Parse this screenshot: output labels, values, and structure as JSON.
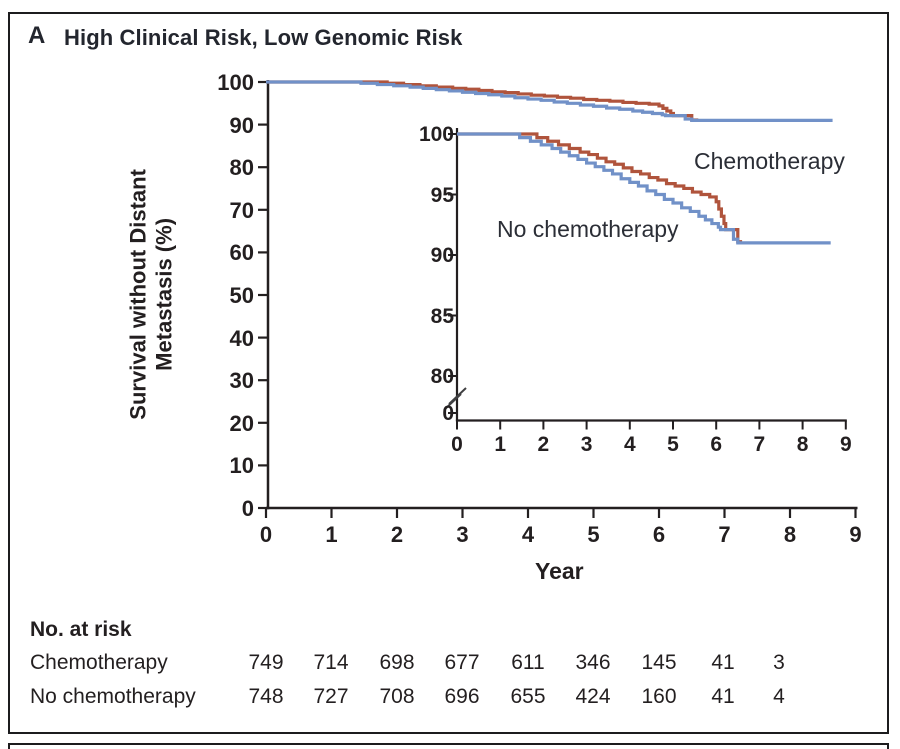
{
  "panel": {
    "label": "A",
    "title": "High Clinical Risk, Low Genomic Risk"
  },
  "colors": {
    "chemotherapy_line": "#b0543c",
    "no_chemotherapy_line": "#7191c8",
    "axis": "#231f20",
    "text": "#24262e"
  },
  "axis": {
    "ylabel_line1": "Survival without Distant",
    "ylabel_line2": "Metastasis (%)",
    "xlabel": "Year"
  },
  "legend": {
    "chemotherapy": "Chemotherapy",
    "no_chemotherapy": "No chemotherapy"
  },
  "chart_data": {
    "type": "line",
    "subtype": "kaplan-meier-step",
    "title": "High Clinical Risk, Low Genomic Risk",
    "xlabel": "Year",
    "ylabel": "Survival without Distant Metastasis (%)",
    "main_axis": {
      "xlim": [
        0,
        9
      ],
      "ylim": [
        0,
        100
      ],
      "x_ticks": [
        0,
        1,
        2,
        3,
        4,
        5,
        6,
        7,
        8,
        9
      ],
      "y_ticks": [
        100,
        90,
        80,
        70,
        60,
        50,
        40,
        30,
        20,
        10,
        0
      ],
      "grid": false
    },
    "inset_axis": {
      "xlim": [
        0,
        9
      ],
      "ylim_shown": [
        80,
        100
      ],
      "x_ticks": [
        0,
        1,
        2,
        3,
        4,
        5,
        6,
        7,
        8,
        9
      ],
      "y_ticks": [
        100,
        95,
        90,
        85,
        80,
        0
      ],
      "axis_break": true
    },
    "legend_position": "inset-annotations",
    "series": [
      {
        "name": "Chemotherapy",
        "color": "#b0543c",
        "points": [
          [
            0,
            100
          ],
          [
            1.6,
            100
          ],
          [
            1.85,
            99.7
          ],
          [
            2.1,
            99.4
          ],
          [
            2.35,
            99.1
          ],
          [
            2.6,
            98.8
          ],
          [
            2.85,
            98.5
          ],
          [
            3.05,
            98.3
          ],
          [
            3.25,
            98.0
          ],
          [
            3.45,
            97.7
          ],
          [
            3.65,
            97.5
          ],
          [
            3.85,
            97.2
          ],
          [
            4.05,
            96.9
          ],
          [
            4.25,
            96.7
          ],
          [
            4.45,
            96.4
          ],
          [
            4.65,
            96.2
          ],
          [
            4.85,
            95.9
          ],
          [
            5.05,
            95.7
          ],
          [
            5.25,
            95.5
          ],
          [
            5.45,
            95.2
          ],
          [
            5.65,
            95.0
          ],
          [
            5.85,
            94.8
          ],
          [
            6.0,
            94.4
          ],
          [
            6.06,
            93.8
          ],
          [
            6.12,
            93.2
          ],
          [
            6.18,
            92.6
          ],
          [
            6.22,
            92.1
          ],
          [
            6.45,
            92.1
          ],
          [
            6.5,
            91.1
          ],
          [
            6.6,
            91.1
          ]
        ]
      },
      {
        "name": "No chemotherapy",
        "color": "#7191c8",
        "points": [
          [
            0,
            100
          ],
          [
            1.2,
            100
          ],
          [
            1.45,
            99.7
          ],
          [
            1.7,
            99.4
          ],
          [
            1.95,
            99.1
          ],
          [
            2.2,
            98.8
          ],
          [
            2.4,
            98.5
          ],
          [
            2.6,
            98.2
          ],
          [
            2.8,
            97.9
          ],
          [
            3.0,
            97.6
          ],
          [
            3.2,
            97.3
          ],
          [
            3.4,
            97.0
          ],
          [
            3.6,
            96.7
          ],
          [
            3.8,
            96.3
          ],
          [
            4.0,
            96.0
          ],
          [
            4.2,
            95.7
          ],
          [
            4.4,
            95.3
          ],
          [
            4.6,
            95.0
          ],
          [
            4.8,
            94.6
          ],
          [
            5.0,
            94.3
          ],
          [
            5.2,
            93.9
          ],
          [
            5.4,
            93.6
          ],
          [
            5.6,
            93.2
          ],
          [
            5.75,
            92.9
          ],
          [
            5.9,
            92.6
          ],
          [
            6.05,
            92.3
          ],
          [
            6.1,
            92.1
          ],
          [
            6.3,
            92.1
          ],
          [
            6.4,
            91.3
          ],
          [
            6.5,
            91.0
          ],
          [
            8.65,
            91.0
          ]
        ]
      }
    ]
  },
  "risk_table": {
    "header": "No. at risk",
    "rows": [
      {
        "label": "Chemotherapy",
        "values": [
          "749",
          "714",
          "698",
          "677",
          "611",
          "346",
          "145",
          "41",
          "3"
        ]
      },
      {
        "label": "No chemotherapy",
        "values": [
          "748",
          "727",
          "708",
          "696",
          "655",
          "424",
          "160",
          "41",
          "4"
        ]
      }
    ]
  }
}
